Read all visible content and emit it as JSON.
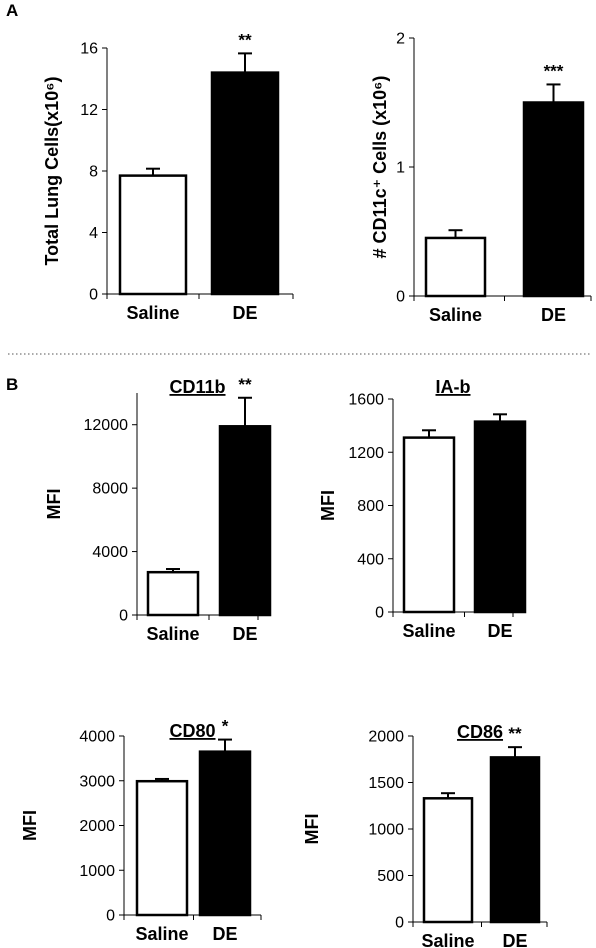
{
  "panel_labels": {
    "a": "A",
    "b": "B"
  },
  "chart_data": [
    {
      "type": "bar",
      "title": "",
      "ylabel": "Total Lung Cells(x10⁶)",
      "categories": [
        "Saline",
        "DE"
      ],
      "values": [
        7.7,
        14.4
      ],
      "errors": [
        0.45,
        1.25
      ],
      "significance": [
        "",
        "**"
      ],
      "ylim": [
        0,
        16
      ],
      "yticks": [
        0,
        4,
        8,
        12,
        16
      ],
      "bar_colors": [
        "#ffffff",
        "#000000"
      ],
      "grid": false
    },
    {
      "type": "bar",
      "title": "",
      "ylabel": "# CD11c⁺ Cells (x10⁶)",
      "categories": [
        "Saline",
        "DE"
      ],
      "values": [
        0.45,
        1.5
      ],
      "errors": [
        0.06,
        0.14
      ],
      "significance": [
        "",
        "***"
      ],
      "ylim": [
        0,
        2
      ],
      "yticks": [
        0,
        1,
        2
      ],
      "bar_colors": [
        "#ffffff",
        "#000000"
      ],
      "grid": false
    },
    {
      "type": "bar",
      "title": "CD11b",
      "ylabel": "MFI",
      "categories": [
        "Saline",
        "DE"
      ],
      "values": [
        2700,
        11900
      ],
      "errors": [
        200,
        1800
      ],
      "significance": [
        "",
        "**"
      ],
      "ylim": [
        0,
        14000
      ],
      "yticks": [
        0,
        4000,
        8000,
        12000
      ],
      "bar_colors": [
        "#ffffff",
        "#000000"
      ],
      "grid": false
    },
    {
      "type": "bar",
      "title": "IA-b",
      "ylabel": "MFI",
      "categories": [
        "Saline",
        "DE"
      ],
      "values": [
        1310,
        1430
      ],
      "errors": [
        55,
        55
      ],
      "significance": [
        "",
        ""
      ],
      "ylim": [
        0,
        1600
      ],
      "yticks": [
        0,
        400,
        800,
        1200,
        1600
      ],
      "bar_colors": [
        "#ffffff",
        "#000000"
      ],
      "grid": false
    },
    {
      "type": "bar",
      "title": "CD80",
      "ylabel": "MFI",
      "categories": [
        "Saline",
        "DE"
      ],
      "values": [
        2990,
        3650
      ],
      "errors": [
        50,
        270
      ],
      "significance": [
        "",
        "*"
      ],
      "ylim": [
        0,
        4000
      ],
      "yticks": [
        0,
        1000,
        2000,
        3000,
        4000
      ],
      "bar_colors": [
        "#ffffff",
        "#000000"
      ],
      "grid": false
    },
    {
      "type": "bar",
      "title": "CD86",
      "ylabel": "MFI",
      "categories": [
        "Saline",
        "DE"
      ],
      "values": [
        1330,
        1770
      ],
      "errors": [
        55,
        110
      ],
      "significance": [
        "",
        "**"
      ],
      "ylim": [
        0,
        2000
      ],
      "yticks": [
        0,
        500,
        1000,
        1500,
        2000
      ],
      "bar_colors": [
        "#ffffff",
        "#000000"
      ],
      "grid": false
    }
  ]
}
